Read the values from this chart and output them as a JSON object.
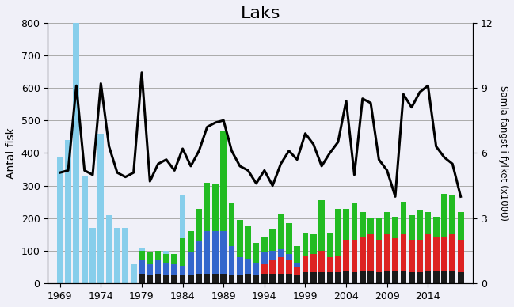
{
  "title": "Laks",
  "ylabel_left": "Antal fisk",
  "ylabel_right": "Samla fangst i fylket (x1000)",
  "years": [
    1969,
    1970,
    1971,
    1972,
    1973,
    1974,
    1975,
    1976,
    1977,
    1978,
    1979,
    1980,
    1981,
    1982,
    1983,
    1984,
    1985,
    1986,
    1987,
    1988,
    1989,
    1990,
    1991,
    1992,
    1993,
    1994,
    1995,
    1996,
    1997,
    1998,
    1999,
    2000,
    2001,
    2002,
    2003,
    2004,
    2005,
    2006,
    2007,
    2008,
    2009,
    2010,
    2011,
    2012,
    2013,
    2014,
    2015,
    2016,
    2017,
    2018
  ],
  "bar_lightblue": [
    390,
    440,
    800,
    330,
    170,
    460,
    210,
    170,
    170,
    60,
    110,
    0,
    30,
    100,
    0,
    270,
    0,
    0,
    0,
    0,
    0,
    0,
    0,
    0,
    0,
    0,
    0,
    0,
    0,
    0,
    0,
    0,
    0,
    0,
    0,
    0,
    0,
    0,
    0,
    0,
    0,
    0,
    0,
    0,
    0,
    0,
    0,
    0,
    0,
    0
  ],
  "bar_black": [
    0,
    0,
    0,
    0,
    0,
    0,
    0,
    0,
    0,
    0,
    30,
    25,
    30,
    25,
    25,
    25,
    25,
    30,
    30,
    30,
    30,
    25,
    25,
    30,
    25,
    30,
    30,
    30,
    30,
    25,
    35,
    35,
    35,
    35,
    35,
    40,
    35,
    40,
    40,
    35,
    40,
    40,
    40,
    35,
    35,
    40,
    40,
    40,
    40,
    35
  ],
  "bar_red": [
    0,
    0,
    0,
    0,
    0,
    0,
    0,
    0,
    0,
    0,
    0,
    0,
    0,
    0,
    0,
    0,
    0,
    0,
    0,
    0,
    0,
    0,
    0,
    0,
    0,
    30,
    40,
    50,
    40,
    25,
    50,
    55,
    65,
    45,
    50,
    95,
    100,
    105,
    110,
    100,
    110,
    100,
    110,
    100,
    100,
    110,
    105,
    105,
    110,
    100
  ],
  "bar_blue": [
    0,
    0,
    0,
    0,
    0,
    0,
    0,
    0,
    0,
    0,
    40,
    35,
    40,
    40,
    35,
    30,
    70,
    100,
    130,
    130,
    130,
    90,
    55,
    45,
    40,
    35,
    30,
    25,
    20,
    15,
    0,
    0,
    0,
    0,
    0,
    0,
    0,
    0,
    0,
    0,
    0,
    0,
    0,
    0,
    0,
    0,
    0,
    0,
    0,
    0
  ],
  "bar_green": [
    0,
    0,
    0,
    0,
    0,
    0,
    0,
    0,
    0,
    0,
    30,
    35,
    30,
    25,
    30,
    85,
    65,
    100,
    150,
    145,
    310,
    130,
    115,
    100,
    60,
    50,
    65,
    110,
    95,
    50,
    70,
    60,
    155,
    75,
    145,
    95,
    110,
    75,
    50,
    65,
    70,
    65,
    100,
    75,
    90,
    70,
    60,
    130,
    120,
    85
  ],
  "line_values": [
    5.1,
    5.2,
    9.1,
    5.2,
    5.0,
    9.2,
    6.3,
    5.1,
    4.9,
    5.1,
    9.7,
    4.7,
    5.5,
    5.7,
    5.2,
    6.2,
    5.4,
    6.1,
    7.2,
    7.4,
    7.5,
    6.1,
    5.4,
    5.2,
    4.6,
    5.2,
    4.5,
    5.5,
    6.1,
    5.7,
    6.9,
    6.4,
    5.4,
    6.0,
    6.5,
    8.4,
    5.0,
    8.5,
    8.3,
    5.7,
    5.2,
    4.0,
    8.7,
    8.1,
    8.8,
    9.1,
    6.3,
    5.8,
    5.5,
    4.0
  ],
  "ylim_left": [
    0,
    800
  ],
  "ylim_right": [
    0,
    12
  ],
  "yticks_left": [
    0,
    100,
    200,
    300,
    400,
    500,
    600,
    700,
    800
  ],
  "yticks_right": [
    0,
    3,
    6,
    9,
    12
  ],
  "xticks": [
    1969,
    1974,
    1979,
    1984,
    1989,
    1994,
    1999,
    2004,
    2009,
    2014
  ],
  "color_lightblue": "#87CEEB",
  "color_black": "#1a1a1a",
  "color_red": "#dd2222",
  "color_blue": "#3366cc",
  "color_green": "#22bb22",
  "color_line": "#000000",
  "bg_color": "#f0f0f8",
  "grid_color": "#aaaaaa"
}
